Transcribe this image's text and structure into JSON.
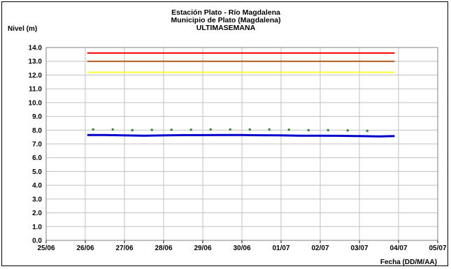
{
  "chart_data": {
    "type": "line",
    "title": [
      "Estación Plato - Río Magdalena",
      "Municipio de Plato (Magdalena)",
      "ULTIMASEMANA"
    ],
    "ylabel": "Nivel (m)",
    "xlabel": "Fecha (DD/M/AA)",
    "ylim": [
      0,
      14
    ],
    "yticks": [
      "0.0",
      "1.0",
      "2.0",
      "3.0",
      "4.0",
      "5.0",
      "6.0",
      "7.0",
      "8.0",
      "9.0",
      "10.0",
      "11.0",
      "12.0",
      "13.0",
      "14.0"
    ],
    "xlim": [
      0,
      10
    ],
    "xticks": [
      "25/06",
      "26/06",
      "27/06",
      "28/06",
      "29/06",
      "30/06",
      "01/07",
      "02/07",
      "03/07",
      "04/07",
      "05/07"
    ],
    "grid": true,
    "thresholds": [
      {
        "value": 13.6,
        "color": "#ff0000",
        "x_range": [
          1.05,
          8.9
        ]
      },
      {
        "value": 13.0,
        "color": "#b05a1e",
        "x_range": [
          1.05,
          8.9
        ]
      },
      {
        "value": 12.2,
        "color": "#ffff33",
        "x_range": [
          1.05,
          8.9
        ]
      }
    ],
    "series": [
      {
        "style": "line",
        "color": "#0000cc",
        "x": [
          1.05,
          1.5,
          2.0,
          2.5,
          3.0,
          3.5,
          4.0,
          4.5,
          5.0,
          5.5,
          6.0,
          6.5,
          7.0,
          7.5,
          8.0,
          8.5,
          8.9
        ],
        "y": [
          7.65,
          7.65,
          7.62,
          7.6,
          7.62,
          7.64,
          7.64,
          7.65,
          7.65,
          7.63,
          7.62,
          7.6,
          7.6,
          7.59,
          7.57,
          7.55,
          7.57
        ]
      },
      {
        "style": "points",
        "color": "#2e7d32",
        "x": [
          1.2,
          1.7,
          2.2,
          2.7,
          3.2,
          3.7,
          4.2,
          4.7,
          5.2,
          5.7,
          6.2,
          6.7,
          7.2,
          7.7,
          8.2
        ],
        "y": [
          8.05,
          8.05,
          8.0,
          8.02,
          8.03,
          8.03,
          8.05,
          8.05,
          8.05,
          8.05,
          8.03,
          8.0,
          8.0,
          7.98,
          7.95
        ]
      }
    ]
  }
}
